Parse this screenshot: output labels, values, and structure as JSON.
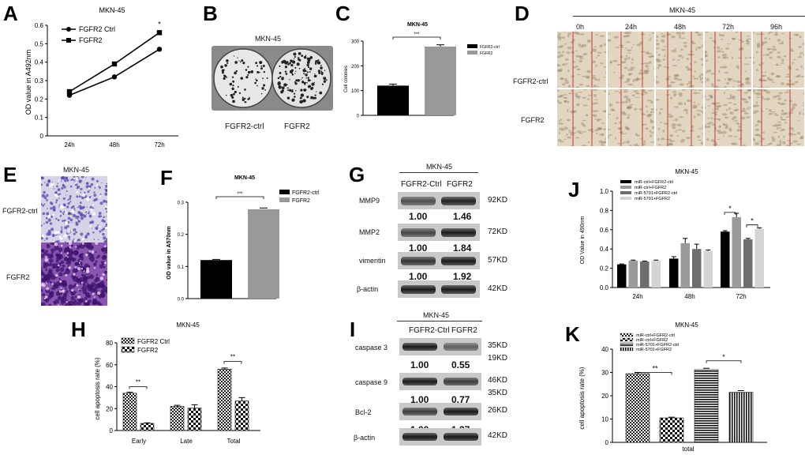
{
  "labels": {
    "A": "A",
    "B": "B",
    "C": "C",
    "D": "D",
    "E": "E",
    "F": "F",
    "G": "G",
    "H": "H",
    "I": "I",
    "J": "J",
    "K": "K"
  },
  "cell_line": "MKN-45",
  "panel_A": {
    "chart_data": {
      "type": "line",
      "title": "MKN-45",
      "ylabel": "OD value in A492nm",
      "categories": [
        "24h",
        "48h",
        "72h"
      ],
      "ylim": [
        0,
        0.6
      ],
      "yticks": [
        "0",
        "0.1",
        "0.2",
        "0.3",
        "0.4",
        "0.5",
        "0.6"
      ],
      "series": [
        {
          "name": "FGFR2 Ctrl",
          "marker": "circle",
          "values": [
            0.22,
            0.32,
            0.47
          ]
        },
        {
          "name": "FGFR2",
          "marker": "square",
          "values": [
            0.24,
            0.39,
            0.56
          ]
        }
      ],
      "annotation": "*"
    }
  },
  "panel_B": {
    "title": "MKN-45",
    "left_label": "FGFR2-ctrl",
    "right_label": "FGFR2"
  },
  "panel_C": {
    "chart_data": {
      "type": "bar",
      "title": "MKN-45",
      "ylabel": "Cell colonies",
      "categories": [
        "FGFR2-ctrl",
        "FGFR2"
      ],
      "values": [
        120,
        278
      ],
      "errors": [
        6,
        7
      ],
      "colors": [
        "#000000",
        "#999999"
      ],
      "ylim": [
        0,
        300
      ],
      "yticks": [
        "0",
        "100",
        "200",
        "300"
      ],
      "significance": "***"
    }
  },
  "panel_D": {
    "title": "MKN-45",
    "times": [
      "0h",
      "24h",
      "48h",
      "72h",
      "96h"
    ],
    "rows": [
      "FGFR2-ctrl",
      "FGFR2"
    ]
  },
  "panel_E": {
    "title": "MKN-45",
    "rows": [
      "FGFR2-ctrl",
      "FGFR2"
    ]
  },
  "panel_F": {
    "chart_data": {
      "type": "bar",
      "title": "MKN-45",
      "ylabel": "OD value in A570nm",
      "categories": [
        "FGFR2-ctrl",
        "FGFR2"
      ],
      "values": [
        0.12,
        0.278
      ],
      "errors": [
        0.002,
        0.004
      ],
      "colors": [
        "#000000",
        "#999999"
      ],
      "ylim": [
        0,
        0.3
      ],
      "yticks": [
        "0.0",
        "0.1",
        "0.2",
        "0.3"
      ],
      "significance": "***"
    }
  },
  "panel_G": {
    "title": "MKN-45",
    "columns": [
      "FGFR2-Ctrl",
      "FGFR2"
    ],
    "proteins": [
      {
        "name": "MMP9",
        "kd": "92KD",
        "ratios": [
          "1.00",
          "1.46"
        ]
      },
      {
        "name": "MMP2",
        "kd": "72KD",
        "ratios": [
          "1.00",
          "1.84"
        ]
      },
      {
        "name": "vimentin",
        "kd": "57KD",
        "ratios": [
          "1.00",
          "1.92"
        ]
      },
      {
        "name": "β-actin",
        "kd": "42KD",
        "ratios": []
      }
    ]
  },
  "panel_H": {
    "chart_data": {
      "type": "bar",
      "title": "MKN-45",
      "ylabel": "cell apoptosis rate (%)",
      "categories": [
        "Early",
        "Late",
        "Total"
      ],
      "series": [
        {
          "name": "FGFR2 Ctrl",
          "values": [
            34,
            22,
            56
          ],
          "errors": [
            1,
            1,
            1
          ]
        },
        {
          "name": "FGFR2",
          "values": [
            6.5,
            20.5,
            27
          ],
          "errors": [
            0.5,
            3,
            3
          ]
        }
      ],
      "ylim": [
        0,
        80
      ],
      "yticks": [
        "0",
        "20",
        "40",
        "60",
        "80"
      ],
      "significance": [
        "**",
        "**"
      ]
    }
  },
  "panel_I": {
    "title": "MKN-45",
    "columns": [
      "FGFR2-Ctrl",
      "FGFR2"
    ],
    "proteins": [
      {
        "name": "caspase 3",
        "kd": [
          "35KD",
          "19KD"
        ],
        "ratios": [
          "1.00",
          "0.55"
        ]
      },
      {
        "name": "caspase 9",
        "kd": [
          "46KD",
          "35KD"
        ],
        "ratios": [
          "1.00",
          "0.77"
        ]
      },
      {
        "name": "Bcl-2",
        "kd": [
          "26KD"
        ],
        "ratios": [
          "1.00",
          "1.37"
        ]
      },
      {
        "name": "β-actin",
        "kd": [
          "42KD"
        ],
        "ratios": []
      }
    ]
  },
  "panel_J": {
    "chart_data": {
      "type": "bar",
      "title": "MKN-45",
      "ylabel": "OD Value in 490nm",
      "categories": [
        "24h",
        "48h",
        "72h"
      ],
      "series": [
        {
          "name": "miR-ctrl+FGFR2-ctrl",
          "color": "#000000",
          "values": [
            0.24,
            0.3,
            0.58
          ],
          "errors": [
            0.005,
            0.02,
            0.01
          ]
        },
        {
          "name": "miR-ctrl+FGFR2",
          "color": "#9a9a9a",
          "values": [
            0.28,
            0.46,
            0.73
          ],
          "errors": [
            0.005,
            0.05,
            0.04
          ]
        },
        {
          "name": "miR-5701+FGFR2-ctrl",
          "color": "#6e6e6e",
          "values": [
            0.27,
            0.4,
            0.5
          ],
          "errors": [
            0.005,
            0.05,
            0.01
          ]
        },
        {
          "name": "miR-5701+FGFR2",
          "color": "#d4d4d4",
          "values": [
            0.28,
            0.38,
            0.61
          ],
          "errors": [
            0.005,
            0.01,
            0.01
          ]
        }
      ],
      "ylim": [
        0,
        1.0
      ],
      "yticks": [
        "0.0",
        "0.2",
        "0.4",
        "0.6",
        "0.8",
        "1.0"
      ],
      "significance": [
        "*",
        "*"
      ]
    }
  },
  "panel_K": {
    "chart_data": {
      "type": "bar",
      "title": "MKN-45",
      "ylabel": "cell apoptosis rate (%)",
      "xlabel": "total",
      "series": [
        {
          "name": "miR-ctrl+FGFR2-ctrl",
          "values": [
            29.5
          ],
          "errors": [
            0.5
          ]
        },
        {
          "name": "miR-ctrl+FGFR2",
          "values": [
            10.5
          ],
          "errors": [
            0.3
          ]
        },
        {
          "name": "miR-5701+FGFR2-ctrl",
          "values": [
            31.2
          ],
          "errors": [
            0.6
          ]
        },
        {
          "name": "miR-5701+FGFR2",
          "values": [
            21.5
          ],
          "errors": [
            0.7
          ]
        }
      ],
      "ylim": [
        0,
        40
      ],
      "yticks": [
        "0",
        "10",
        "20",
        "30",
        "40"
      ],
      "significance": [
        "**",
        "*"
      ]
    }
  }
}
